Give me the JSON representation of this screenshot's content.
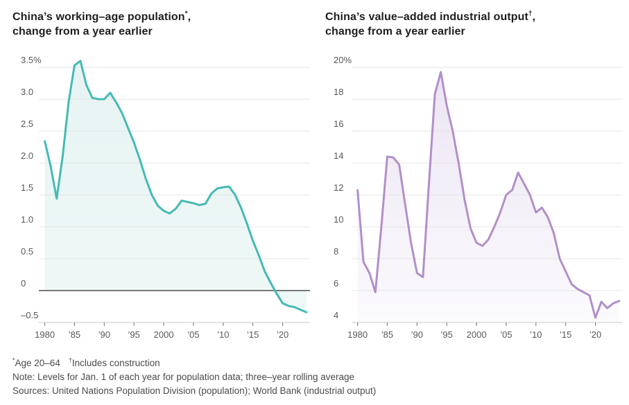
{
  "chart_data": [
    {
      "type": "area",
      "title": "China’s working–age population*, change from a year earlier",
      "title_text": "China’s working–age population",
      "title_mark": "*",
      "title_comma": ",",
      "subtitle": "change from a year earlier",
      "unit": "%",
      "x_domain": [
        1979,
        2024.6
      ],
      "ylim": [
        -0.5,
        3.5
      ],
      "grid": true,
      "legend": "none",
      "baseline": 0,
      "zero_line": true,
      "colors": {
        "line": "#45bab3",
        "fill_top": "#e7f4f3",
        "fill_bottom": "#eef8f7"
      },
      "yticks": [
        {
          "v": 3.5,
          "label": "3.5%"
        },
        {
          "v": 3.0,
          "label": "3.0"
        },
        {
          "v": 2.5,
          "label": "2.5"
        },
        {
          "v": 2.0,
          "label": "2.0"
        },
        {
          "v": 1.5,
          "label": "1.5"
        },
        {
          "v": 1.0,
          "label": "1.0"
        },
        {
          "v": 0.5,
          "label": "0.5"
        },
        {
          "v": 0,
          "label": "0"
        },
        {
          "v": -0.5,
          "label": "–0.5"
        }
      ],
      "xticks": [
        {
          "v": 1980,
          "label": "1980"
        },
        {
          "v": 1985,
          "label": "’85"
        },
        {
          "v": 1990,
          "label": "’90"
        },
        {
          "v": 1995,
          "label": "’95"
        },
        {
          "v": 2000,
          "label": "2000"
        },
        {
          "v": 2005,
          "label": "’05"
        },
        {
          "v": 2010,
          "label": "’10"
        },
        {
          "v": 2015,
          "label": "’15"
        },
        {
          "v": 2020,
          "label": "’20"
        }
      ],
      "x": [
        1980,
        1981,
        1982,
        1983,
        1984,
        1985,
        1986,
        1987,
        1988,
        1989,
        1990,
        1991,
        1992,
        1993,
        1994,
        1995,
        1996,
        1997,
        1998,
        1999,
        2000,
        2001,
        2002,
        2003,
        2004,
        2005,
        2006,
        2007,
        2008,
        2009,
        2010,
        2011,
        2012,
        2013,
        2014,
        2015,
        2016,
        2017,
        2018,
        2019,
        2020,
        2021,
        2022,
        2023,
        2024
      ],
      "values": [
        2.34,
        1.95,
        1.44,
        2.1,
        2.95,
        3.53,
        3.6,
        3.22,
        3.02,
        3.0,
        3.0,
        3.1,
        2.95,
        2.78,
        2.55,
        2.32,
        2.05,
        1.75,
        1.5,
        1.33,
        1.25,
        1.21,
        1.28,
        1.41,
        1.39,
        1.37,
        1.34,
        1.36,
        1.52,
        1.6,
        1.62,
        1.63,
        1.5,
        1.3,
        1.05,
        0.78,
        0.55,
        0.3,
        0.12,
        -0.05,
        -0.2,
        -0.24,
        -0.26,
        -0.3,
        -0.34
      ]
    },
    {
      "type": "area",
      "title": "China’s value–added industrial output†, change from a year earlier",
      "title_text": "China’s value–added industrial output",
      "title_mark": "†",
      "title_comma": ",",
      "subtitle": "change from a year earlier",
      "unit": "%",
      "x_domain": [
        1979,
        2024.6
      ],
      "ylim": [
        4,
        20
      ],
      "grid": true,
      "legend": "none",
      "baseline": 4,
      "zero_line": false,
      "colors": {
        "line": "#b18fc9",
        "fill_top": "#ece5f3",
        "fill_bottom": "#fbfafd"
      },
      "yticks": [
        {
          "v": 20,
          "label": "20%"
        },
        {
          "v": 18,
          "label": "18"
        },
        {
          "v": 16,
          "label": "16"
        },
        {
          "v": 14,
          "label": "14"
        },
        {
          "v": 12,
          "label": "12"
        },
        {
          "v": 10,
          "label": "10"
        },
        {
          "v": 8,
          "label": "8"
        },
        {
          "v": 6,
          "label": "6"
        },
        {
          "v": 4,
          "label": "4"
        }
      ],
      "xticks": [
        {
          "v": 1980,
          "label": "1980"
        },
        {
          "v": 1985,
          "label": "’85"
        },
        {
          "v": 1990,
          "label": "’90"
        },
        {
          "v": 1995,
          "label": "’95"
        },
        {
          "v": 2000,
          "label": "2000"
        },
        {
          "v": 2005,
          "label": "’05"
        },
        {
          "v": 2010,
          "label": "’10"
        },
        {
          "v": 2015,
          "label": "’15"
        },
        {
          "v": 2020,
          "label": "’20"
        }
      ],
      "x": [
        1980,
        1981,
        1982,
        1983,
        1984,
        1985,
        1986,
        1987,
        1988,
        1989,
        1990,
        1991,
        1992,
        1993,
        1994,
        1995,
        1996,
        1997,
        1998,
        1999,
        2000,
        2001,
        2002,
        2003,
        2004,
        2005,
        2006,
        2007,
        2008,
        2009,
        2010,
        2011,
        2012,
        2013,
        2014,
        2015,
        2016,
        2017,
        2018,
        2019,
        2020,
        2021,
        2022,
        2023,
        2024
      ],
      "values": [
        12.3,
        7.8,
        7.1,
        5.9,
        10.0,
        14.4,
        14.35,
        13.9,
        11.4,
        9.0,
        7.1,
        6.85,
        12.7,
        18.3,
        19.7,
        17.6,
        16.0,
        14.0,
        11.7,
        9.9,
        9.0,
        8.8,
        9.2,
        10.0,
        10.9,
        12.0,
        12.3,
        13.4,
        12.7,
        12.0,
        10.9,
        11.2,
        10.6,
        9.6,
        8.0,
        7.2,
        6.4,
        6.1,
        5.9,
        5.7,
        4.3,
        5.3,
        4.9,
        5.2,
        5.35
      ]
    }
  ],
  "footnotes": {
    "mark1": "*",
    "text1": "Age 20–64",
    "mark2": "†",
    "text2": "Includes construction",
    "note": "Note: Levels for Jan. 1 of each year for population data; three–year rolling average",
    "sources": "Sources: United Nations Population Division (population); World Bank (industrial output)"
  }
}
